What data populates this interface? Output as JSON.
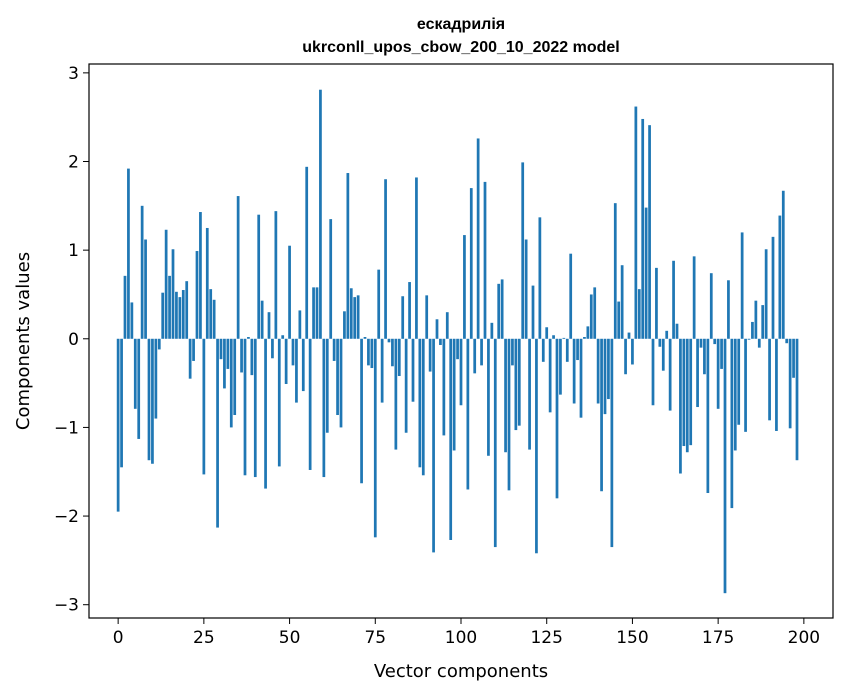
{
  "chart_data": {
    "type": "bar",
    "title_line1": "ескадрилія",
    "title_line2": "ukrconll_upos_cbow_200_10_2022 model",
    "xlabel": "Vector components",
    "ylabel": "Components values",
    "xlim": [
      -8.5,
      208.5
    ],
    "ylim": [
      -3.15,
      3.1
    ],
    "xticks": [
      0,
      25,
      50,
      75,
      100,
      125,
      150,
      175,
      200
    ],
    "yticks": [
      -3,
      -2,
      -1,
      0,
      1,
      2,
      3
    ],
    "xtick_labels": [
      "0",
      "25",
      "50",
      "75",
      "100",
      "125",
      "150",
      "175",
      "200"
    ],
    "ytick_labels": [
      "−3",
      "−2",
      "−1",
      "0",
      "1",
      "2",
      "3"
    ],
    "bar_color": "#1f77b4",
    "grid": false,
    "values": [
      -1.95,
      -1.45,
      0.71,
      1.92,
      0.41,
      -0.79,
      -1.13,
      1.5,
      1.12,
      -1.37,
      -1.41,
      -0.9,
      -0.12,
      0.52,
      1.23,
      0.71,
      1.01,
      0.53,
      0.47,
      0.55,
      0.65,
      -0.45,
      -0.25,
      0.99,
      1.43,
      -1.53,
      1.25,
      0.56,
      0.44,
      -2.13,
      -0.23,
      -0.56,
      -0.34,
      -1.0,
      -0.86,
      1.61,
      -0.38,
      -1.54,
      0.02,
      -0.41,
      -1.56,
      1.4,
      0.43,
      -1.69,
      0.3,
      -0.22,
      1.44,
      -1.44,
      0.04,
      -0.51,
      1.05,
      -0.3,
      -0.72,
      0.32,
      -0.59,
      1.94,
      -1.48,
      0.58,
      0.58,
      2.81,
      -1.56,
      -1.06,
      1.35,
      -0.25,
      -0.86,
      -1.0,
      0.31,
      1.87,
      0.57,
      0.47,
      0.49,
      -1.63,
      0.02,
      -0.3,
      -0.33,
      -2.24,
      0.78,
      -0.72,
      1.8,
      -0.04,
      -0.31,
      -1.25,
      -0.42,
      0.48,
      -1.06,
      0.64,
      -0.71,
      1.82,
      -1.45,
      -1.54,
      0.49,
      -0.37,
      -2.41,
      0.22,
      -0.07,
      -1.09,
      0.3,
      -2.27,
      -1.26,
      -0.23,
      -0.75,
      1.17,
      -1.7,
      1.7,
      -0.39,
      2.26,
      -0.3,
      1.77,
      -1.32,
      0.18,
      -2.35,
      0.62,
      0.67,
      -1.28,
      -1.71,
      -0.3,
      -1.03,
      -0.98,
      1.99,
      1.12,
      -1.25,
      0.6,
      -2.42,
      1.37,
      -0.26,
      0.13,
      -0.83,
      0.04,
      -1.8,
      -0.63,
      0.01,
      -0.26,
      0.96,
      -0.73,
      -0.24,
      -0.89,
      0.02,
      0.14,
      0.5,
      0.58,
      -0.73,
      -1.72,
      -0.85,
      -0.68,
      -2.35,
      1.53,
      0.42,
      0.83,
      -0.4,
      0.07,
      -0.29,
      2.62,
      0.56,
      2.48,
      1.48,
      2.41,
      -0.75,
      0.8,
      -0.09,
      -0.36,
      0.09,
      -0.81,
      0.88,
      0.17,
      -1.52,
      -1.21,
      -1.28,
      -1.2,
      0.93,
      -0.77,
      -0.1,
      -0.4,
      -1.74,
      0.74,
      -0.06,
      -0.79,
      -0.34,
      -2.87,
      0.66,
      -1.91,
      -1.26,
      -0.97,
      1.2,
      -1.05,
      -0.01,
      0.19,
      0.43,
      -0.1,
      0.38,
      1.01,
      -0.92,
      1.15,
      -1.04,
      1.39,
      1.67,
      -0.05,
      -1.01,
      -0.44,
      -1.37
    ]
  }
}
